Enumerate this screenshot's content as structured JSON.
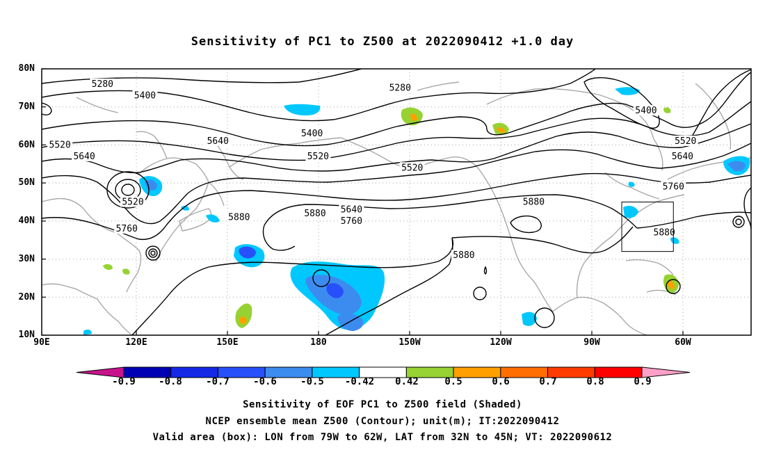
{
  "title": "Sensitivity of PC1 to Z500 at 2022090412 +1.0 day",
  "map": {
    "lat_labels": [
      "80N",
      "70N",
      "60N",
      "50N",
      "40N",
      "30N",
      "20N",
      "10N"
    ],
    "lon_labels": [
      "90E",
      "120E",
      "150E",
      "180",
      "150W",
      "120W",
      "90W",
      "60W"
    ],
    "contour_labels": [
      {
        "text": "5280",
        "lon": 110,
        "lat": 76
      },
      {
        "text": "5280",
        "lon": -152,
        "lat": 75
      },
      {
        "text": "5400",
        "lon": 124,
        "lat": 73
      },
      {
        "text": "5400",
        "lon": 179,
        "lat": 63
      },
      {
        "text": "5400",
        "lon": -71,
        "lat": 69
      },
      {
        "text": "5520",
        "lon": 96,
        "lat": 60
      },
      {
        "text": "5520",
        "lon": 181,
        "lat": 57
      },
      {
        "text": "5520",
        "lon": -148,
        "lat": 54
      },
      {
        "text": "5520",
        "lon": -58,
        "lat": 61
      },
      {
        "text": "5520",
        "lon": 120,
        "lat": 45
      },
      {
        "text": "5640",
        "lon": 104,
        "lat": 57
      },
      {
        "text": "5640",
        "lon": -168,
        "lat": 43
      },
      {
        "text": "5640",
        "lon": -59,
        "lat": 57
      },
      {
        "text": "5640",
        "lon": 148,
        "lat": 61
      },
      {
        "text": "5760",
        "lon": -168,
        "lat": 40
      },
      {
        "text": "5760",
        "lon": 118,
        "lat": 38
      },
      {
        "text": "5760",
        "lon": -62,
        "lat": 49
      },
      {
        "text": "5880",
        "lon": 155,
        "lat": 41
      },
      {
        "text": "5880",
        "lon": 180,
        "lat": 42
      },
      {
        "text": "5880",
        "lon": -108,
        "lat": 45
      },
      {
        "text": "5880",
        "lon": -131,
        "lat": 31
      },
      {
        "text": "5880",
        "lon": -65,
        "lat": 37
      }
    ],
    "valid_box": {
      "lon_min": -79,
      "lon_max": -62,
      "lat_min": 32,
      "lat_max": 45
    }
  },
  "colorbar": {
    "labels": [
      "-0.9",
      "-0.8",
      "-0.7",
      "-0.6",
      "-0.5",
      "-0.42",
      "0.42",
      "0.5",
      "0.6",
      "0.7",
      "0.8",
      "0.9"
    ],
    "colors": [
      "#0000b4",
      "#1428e6",
      "#2850fa",
      "#3c8cf0",
      "#00c8ff",
      "#ffffff",
      "#96d232",
      "#ffa000",
      "#ff6e00",
      "#ff3c00",
      "#ff0000"
    ],
    "low_color": "#c8148c",
    "high_color": "#ffa0c8"
  },
  "caption": {
    "line1": "Sensitivity of EOF PC1 to Z500 field (Shaded)",
    "line2": "NCEP ensemble mean Z500 (Contour); unit(m); IT:2022090412",
    "line3": "Valid area (box): LON from 79W to 62W, LAT from 32N to 45N; VT: 2022090612"
  }
}
